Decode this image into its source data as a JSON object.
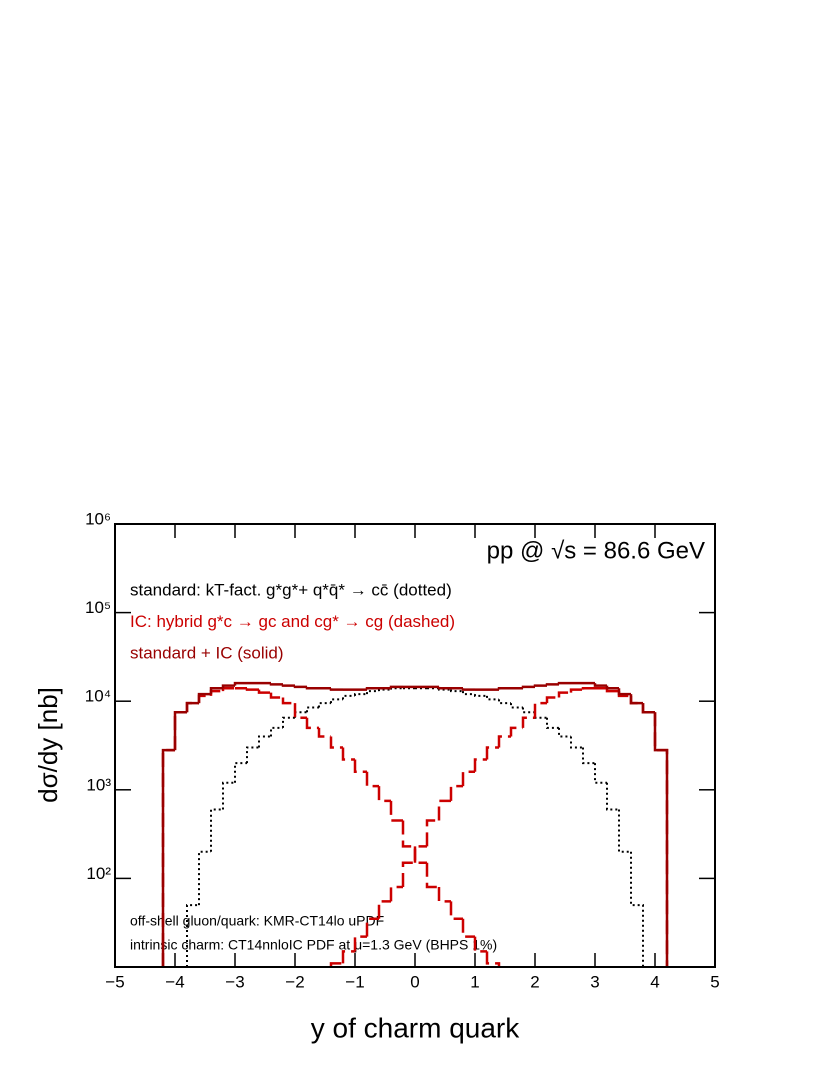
{
  "chart_data": {
    "type": "histogram",
    "title": "pp @ √s = 86.6 GeV",
    "x_label": "y of charm quark",
    "y_label": "dσ/dy   [nb]",
    "annotations": [
      "off-shell gluon/quark: KMR-CT14lo uPDF",
      "intrinsic charm: CT14nnloIC PDF at μ=1.3 GeV (BHPS 1%)"
    ],
    "log_y": true,
    "xlim": [
      -5,
      5
    ],
    "ylim": [
      10,
      1000000
    ],
    "xticks": [
      {
        "value": -5,
        "label": "−5"
      },
      {
        "value": -4,
        "label": "−4"
      },
      {
        "value": -3,
        "label": "−3"
      },
      {
        "value": -2,
        "label": "−2"
      },
      {
        "value": -1,
        "label": "−1"
      },
      0,
      1,
      2,
      3,
      4,
      5
    ],
    "yticks": [
      {
        "value": 100,
        "label": "10²"
      },
      {
        "value": 1000,
        "label": "10³"
      },
      {
        "value": 10000,
        "label": "10⁴"
      },
      {
        "value": 100000,
        "label": "10⁵"
      },
      {
        "value": 1000000,
        "label": "10⁶"
      }
    ],
    "bins": [
      -4.2,
      -4,
      -3.8,
      -3.6,
      -3.4,
      -3.2,
      -3,
      -2.8,
      -2.6,
      -2.4,
      -2.2,
      -2,
      -1.8,
      -1.6,
      -1.4,
      -1.2,
      -1,
      -0.8,
      -0.6,
      -0.4,
      -0.2,
      0,
      0.2,
      0.4,
      0.6,
      0.8,
      1,
      1.2,
      1.4,
      1.6,
      1.8,
      2,
      2.2,
      2.4,
      2.6,
      2.8,
      3,
      3.2,
      3.4,
      3.6,
      3.8,
      4,
      4.2
    ],
    "series": [
      {
        "name": "standard: kT-fact. g*g*+ q*q̄* → cc̄ (dotted)",
        "color": "#000000",
        "style": "dotted",
        "values": [
          null,
          null,
          50,
          200,
          600,
          1200,
          2000,
          3000,
          4000,
          5000,
          6500,
          7500,
          8500,
          9500,
          10500,
          11500,
          12000,
          13000,
          13500,
          14000,
          14000,
          14000,
          14000,
          13500,
          13000,
          12000,
          11500,
          10500,
          9500,
          8500,
          7500,
          6500,
          5000,
          4000,
          3000,
          2000,
          1200,
          600,
          200,
          50,
          null,
          null
        ]
      },
      {
        "name": "IC: hybrid g*c → gc and cg* → cg (dashed)",
        "color": "#cc0000",
        "style": "dashed",
        "values": [
          2800,
          7500,
          9500,
          11500,
          13000,
          14000,
          14000,
          13500,
          12500,
          11000,
          9500,
          6500,
          5000,
          4000,
          3000,
          2200,
          1600,
          1100,
          750,
          450,
          230,
          150,
          80,
          55,
          35,
          22,
          15,
          11,
          null,
          null,
          null,
          null,
          null,
          null,
          null,
          null,
          null,
          null,
          null,
          null,
          null,
          null
        ]
      },
      {
        "color": "#cc0000",
        "style": "dashed",
        "values": [
          null,
          null,
          null,
          null,
          null,
          null,
          null,
          null,
          null,
          null,
          null,
          null,
          null,
          null,
          11,
          15,
          22,
          35,
          55,
          80,
          150,
          230,
          450,
          750,
          1100,
          1600,
          2200,
          3000,
          4000,
          5000,
          6500,
          9500,
          11000,
          12500,
          13500,
          14000,
          14000,
          13000,
          11500,
          9500,
          7500,
          2800
        ]
      },
      {
        "name": "standard + IC (solid)",
        "color": "#990000",
        "style": "solid",
        "values": [
          2800,
          7500,
          9500,
          12000,
          14000,
          15000,
          16000,
          16000,
          16000,
          15500,
          15000,
          14500,
          14000,
          14000,
          13500,
          13500,
          13500,
          14000,
          14000,
          14500,
          14500,
          14500,
          14500,
          14000,
          14000,
          13500,
          13500,
          13500,
          14000,
          14000,
          14500,
          15000,
          15500,
          16000,
          16000,
          16000,
          15000,
          14000,
          12000,
          9500,
          7500,
          2800
        ]
      }
    ]
  }
}
